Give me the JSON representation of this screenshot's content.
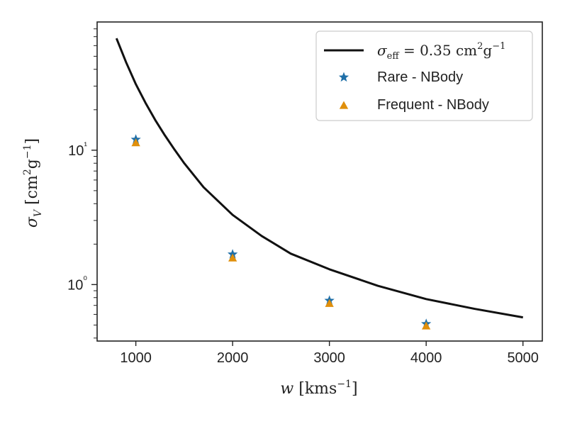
{
  "chart_data": {
    "type": "scatter",
    "title": "",
    "xlabel": "w [kms⁻¹]",
    "ylabel": "σ_V [cm²g⁻¹]",
    "xlim": [
      600,
      5200
    ],
    "ylim": [
      0.38,
      90
    ],
    "yscale": "log",
    "x_ticks": [
      1000,
      2000,
      3000,
      4000,
      5000
    ],
    "y_major_ticks": [
      1,
      10
    ],
    "y_tick_labels": [
      "10⁰",
      "10¹"
    ],
    "series": [
      {
        "name": "σ_eff = 0.35 cm²g⁻¹",
        "kind": "line",
        "color": "#111111",
        "x": [
          800,
          900,
          1000,
          1100,
          1200,
          1300,
          1400,
          1500,
          1700,
          2000,
          2300,
          2600,
          3000,
          3500,
          4000,
          4500,
          5000
        ],
        "y": [
          68,
          45,
          31,
          22.5,
          16.8,
          12.9,
          10.1,
          8.0,
          5.3,
          3.3,
          2.3,
          1.7,
          1.3,
          0.98,
          0.78,
          0.66,
          0.57
        ]
      },
      {
        "name": "Rare - NBody",
        "kind": "scatter",
        "marker": "star",
        "color": "#1f6fa8",
        "x": [
          1000,
          2000,
          3000,
          4000
        ],
        "y": [
          12.0,
          1.68,
          0.76,
          0.51
        ]
      },
      {
        "name": "Frequent - NBody",
        "kind": "scatter",
        "marker": "triangle",
        "color": "#e08f0b",
        "x": [
          1000,
          2000,
          3000,
          4000
        ],
        "y": [
          11.3,
          1.57,
          0.72,
          0.49
        ]
      }
    ],
    "legend": {
      "placement": "top-right",
      "line_label_prefix": "σ",
      "line_label_sub": "eff",
      "line_label_rest": " = 0.35 cm",
      "line_label_sup1": "2",
      "line_label_mid": "g",
      "line_label_sup2": "−1",
      "rare_label": "Rare - NBody",
      "frequent_label": "Frequent - NBody"
    },
    "axis_text": {
      "x_var": "w",
      "x_unit_open": " [kms",
      "x_unit_sup": "−1",
      "x_unit_close": "]",
      "y_var": "σ",
      "y_sub": "V",
      "y_unit_open": " [cm",
      "y_unit_sup1": "2",
      "y_unit_mid": "g",
      "y_unit_sup2": "−1",
      "y_unit_close": "]"
    }
  }
}
